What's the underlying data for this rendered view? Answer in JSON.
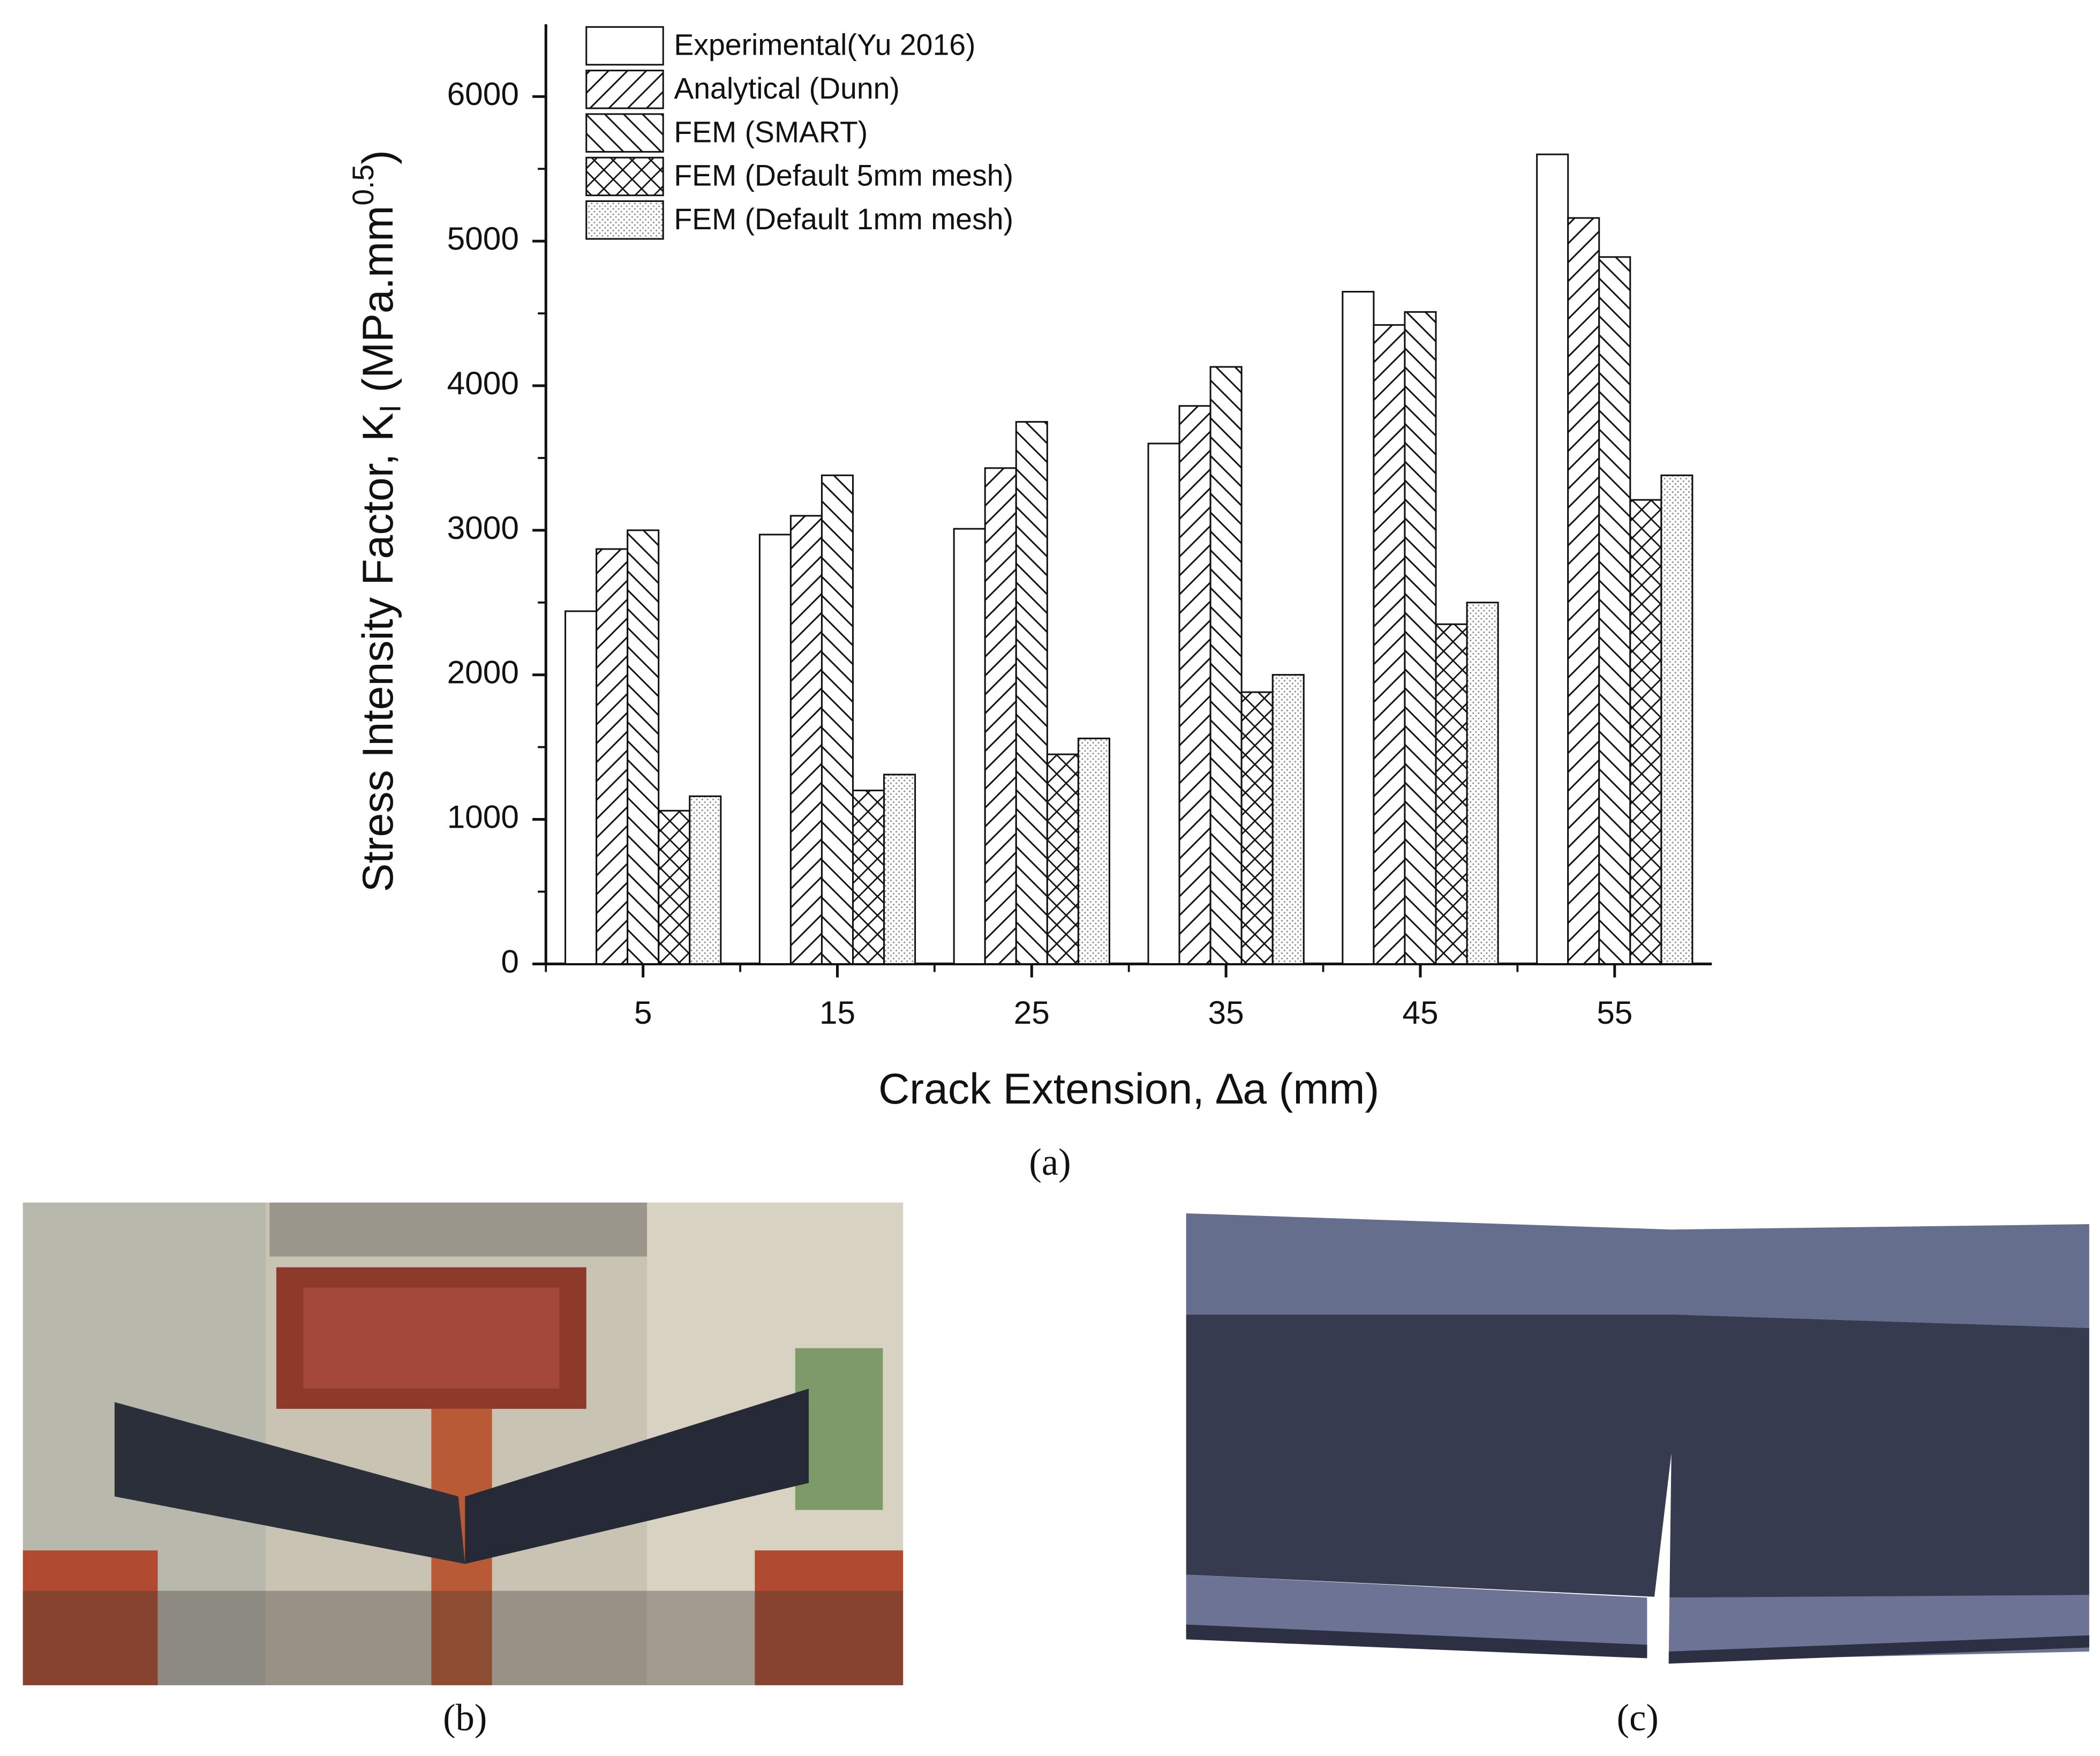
{
  "chart_data": {
    "type": "bar",
    "x_label": "Crack Extension, ∆a (mm)",
    "y_label": {
      "text": "Stress Intensity Factor, K",
      "sub": "I",
      "mid": " (MPa.mm",
      "sup": "0.5",
      "end": ")"
    },
    "categories": [
      "5",
      "15",
      "25",
      "35",
      "45",
      "55"
    ],
    "series": [
      {
        "name": "Experimental(Yu 2016)",
        "pattern": "none",
        "values": [
          2440,
          2970,
          3010,
          3600,
          4650,
          5600
        ]
      },
      {
        "name": "Analytical (Dunn)",
        "pattern": "diag-right",
        "values": [
          2870,
          3100,
          3430,
          3860,
          4420,
          5160
        ]
      },
      {
        "name": "FEM (SMART)",
        "pattern": "diag-left",
        "values": [
          3000,
          3380,
          3750,
          4130,
          4510,
          4890
        ]
      },
      {
        "name": "FEM (Default 5mm mesh)",
        "pattern": "cross",
        "values": [
          1060,
          1200,
          1450,
          1880,
          2350,
          3210
        ]
      },
      {
        "name": "FEM (Default 1mm mesh)",
        "pattern": "dots",
        "values": [
          1160,
          1310,
          1560,
          2000,
          2500,
          3380
        ]
      }
    ],
    "ylim": [
      0,
      6500
    ],
    "yticks": [
      0,
      1000,
      2000,
      3000,
      4000,
      5000,
      6000
    ],
    "legend": "upper left",
    "grid": false
  },
  "panels": {
    "a": "(a)",
    "b": "(b)",
    "c": "(c)"
  }
}
